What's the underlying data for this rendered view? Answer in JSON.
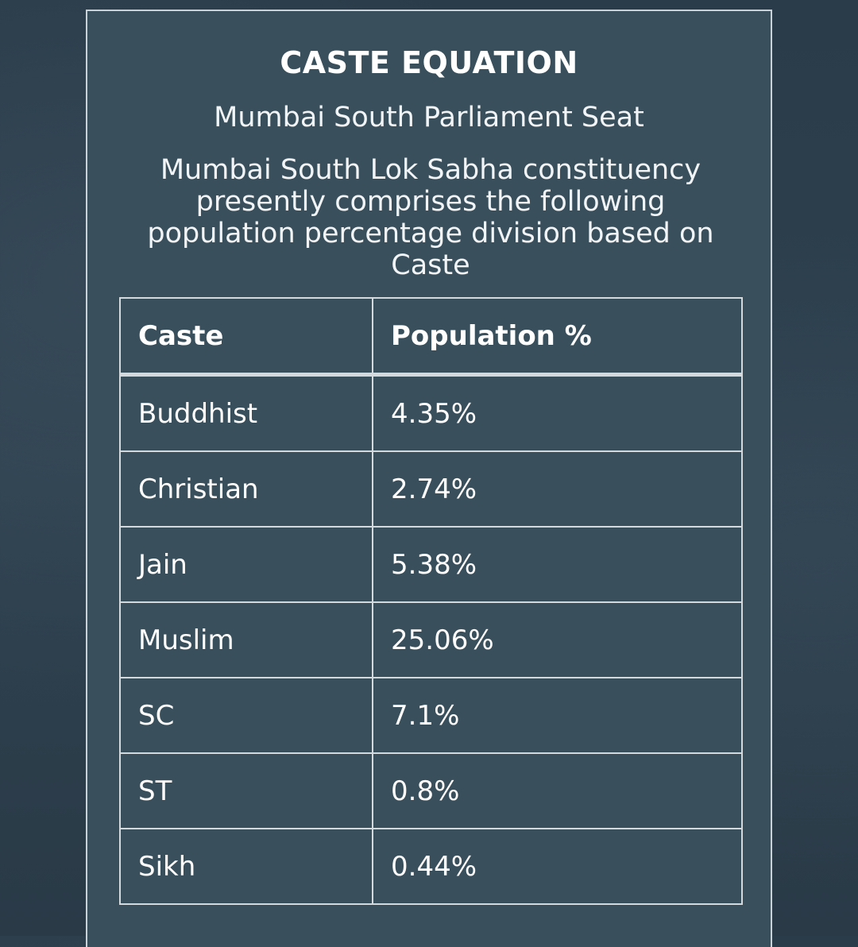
{
  "card": {
    "title": "CASTE EQUATION",
    "subtitle": "Mumbai South Parliament Seat",
    "description": "Mumbai South Lok Sabha constituency presently comprises the following population percentage division based on Caste"
  },
  "table": {
    "headers": [
      "Caste",
      "Population %"
    ],
    "rows": [
      [
        "Buddhist",
        "4.35%"
      ],
      [
        "Christian",
        "2.74%"
      ],
      [
        "Jain",
        "5.38%"
      ],
      [
        "Muslim",
        "25.06%"
      ],
      [
        "SC",
        "7.1%"
      ],
      [
        "ST",
        "0.8%"
      ],
      [
        "Sikh",
        "0.44%"
      ]
    ]
  },
  "colors": {
    "page_background": "#2b3d4b",
    "card_background": "#394f5b",
    "border": "#d3d9dd",
    "text": "#ffffff"
  }
}
